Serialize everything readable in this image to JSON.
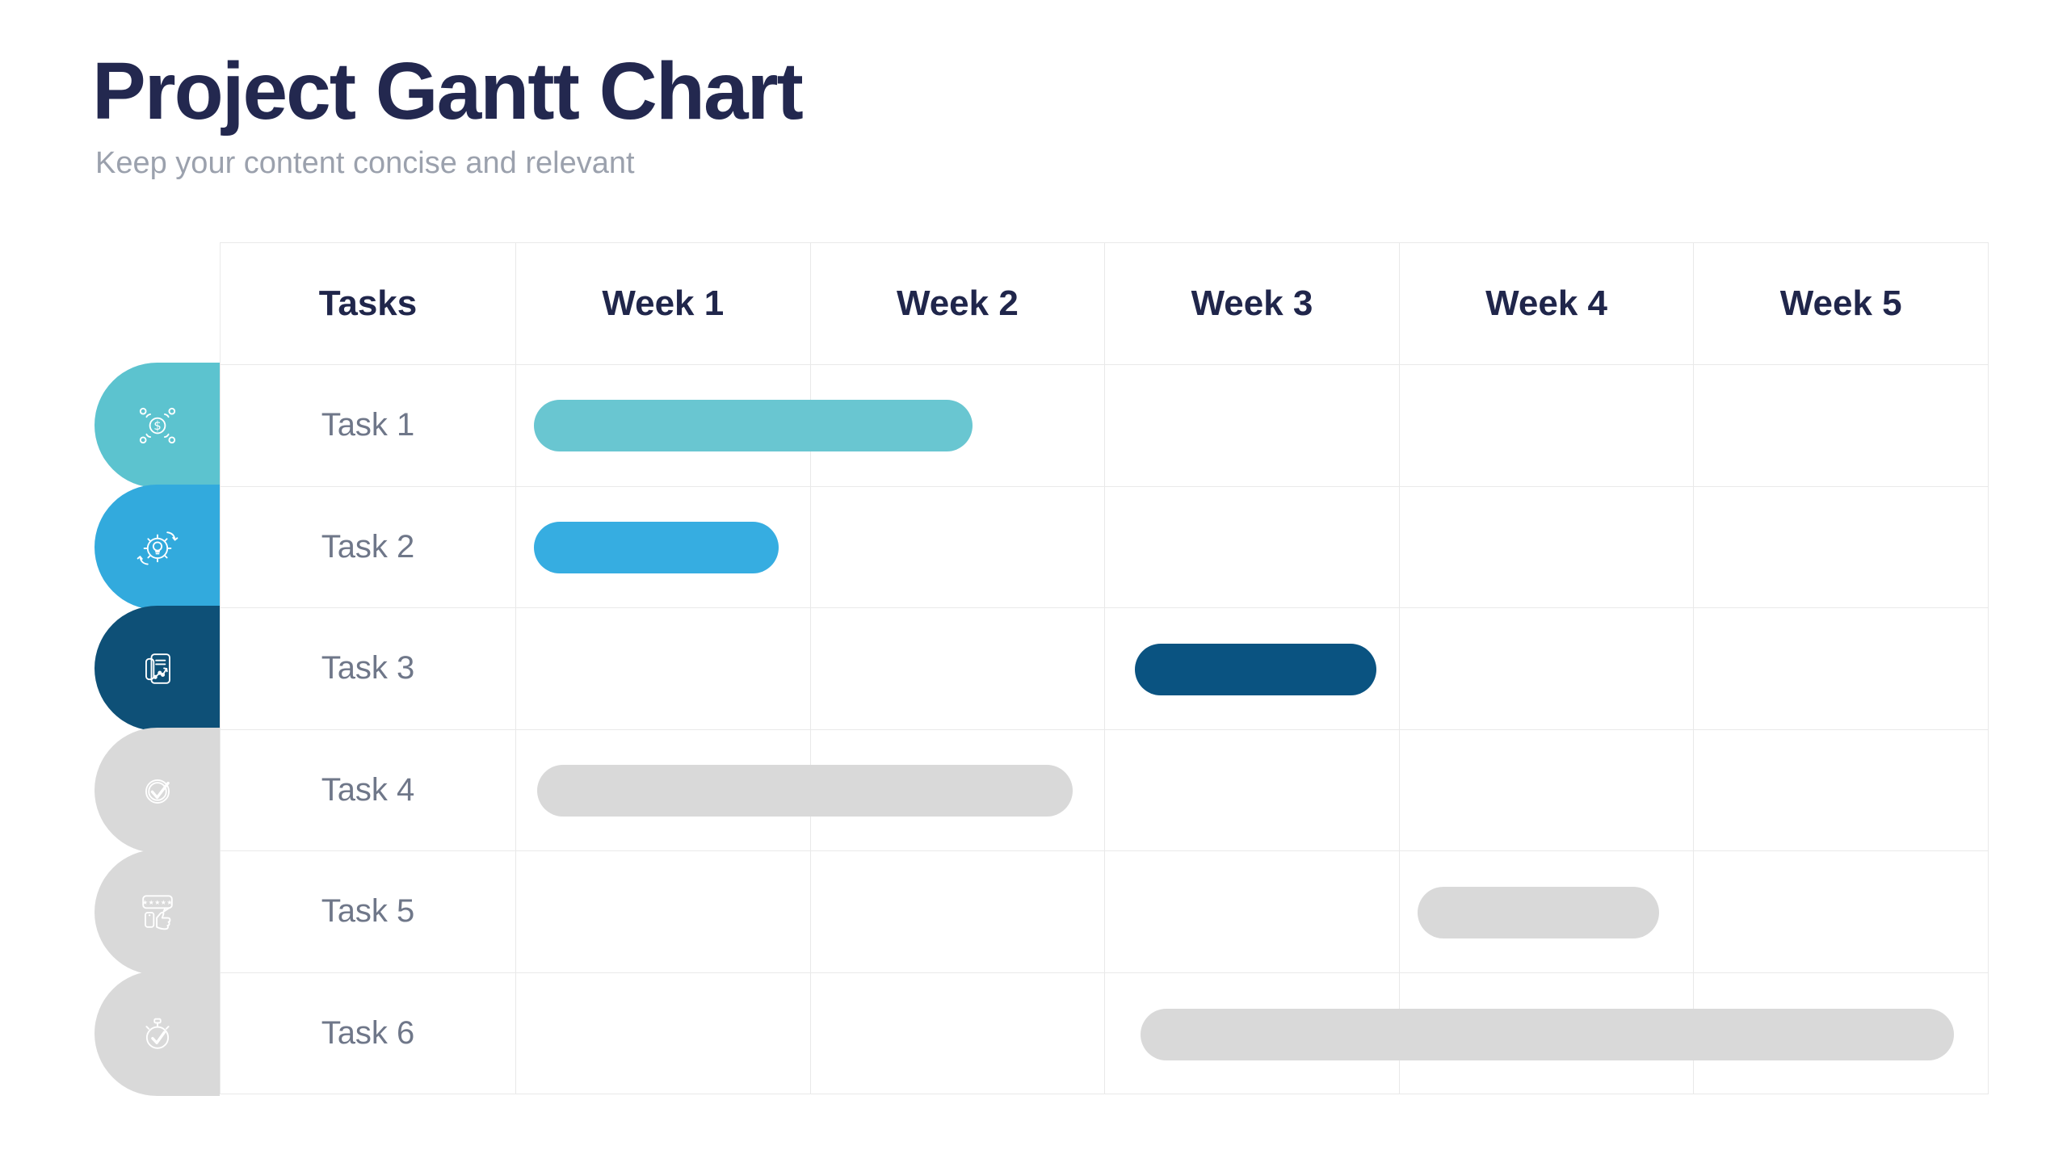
{
  "page": {
    "title": "Project Gantt Chart",
    "subtitle": "Keep your content concise and relevant"
  },
  "colors": {
    "title_text": "#23284F",
    "subtitle_text": "#9BA1AD",
    "header_text": "#20264B",
    "task_label_text": "#6F7789",
    "grid_border": "#E9E9E9",
    "background": "#FFFFFF",
    "icon_stroke": "#FFFFFF"
  },
  "chart_data": {
    "type": "gantt",
    "title": "Project Gantt Chart",
    "columns": [
      "Tasks",
      "Week 1",
      "Week 2",
      "Week 3",
      "Week 4",
      "Week 5"
    ],
    "week_count": 5,
    "grid": "on",
    "tasks": [
      {
        "label": "Task 1",
        "icon": "funding-network-icon",
        "pill_color": "#5CC3CF",
        "bar_color": "#69C6D1",
        "start_week": 1.06,
        "end_week": 2.55
      },
      {
        "label": "Task 2",
        "icon": "gear-lightbulb-icon",
        "pill_color": "#32AADD",
        "bar_color": "#36ADE1",
        "start_week": 1.06,
        "end_week": 1.89
      },
      {
        "label": "Task 3",
        "icon": "report-chart-icon",
        "pill_color": "#0E5077",
        "bar_color": "#0A5381",
        "start_week": 3.1,
        "end_week": 3.92
      },
      {
        "label": "Task 4",
        "icon": "check-circle-icon",
        "pill_color": "#D9D9D9",
        "bar_color": "#D9D9D9",
        "start_week": 1.07,
        "end_week": 2.89
      },
      {
        "label": "Task 5",
        "icon": "rating-thumbs-up-icon",
        "pill_color": "#D9D9D9",
        "bar_color": "#D9D9D9",
        "start_week": 4.06,
        "end_week": 4.88
      },
      {
        "label": "Task 6",
        "icon": "stopwatch-check-icon",
        "pill_color": "#D9D9D9",
        "bar_color": "#D9D9D9",
        "start_week": 3.12,
        "end_week": 5.88
      }
    ]
  }
}
